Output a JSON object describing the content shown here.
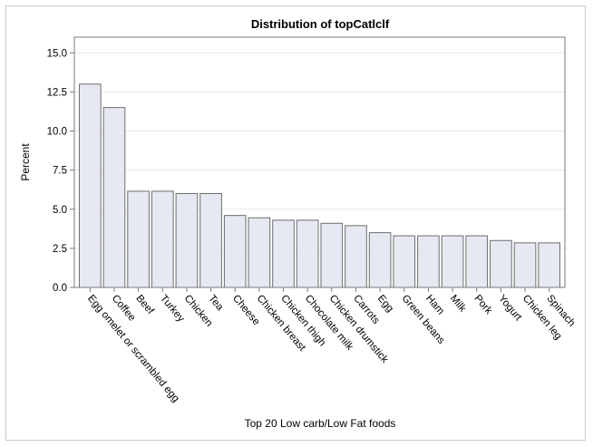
{
  "chart_data": {
    "type": "bar",
    "title": "Distribution of topCatlclf",
    "xlabel": "Top 20 Low carb/Low Fat foods",
    "ylabel": "Percent",
    "ylim": [
      0,
      16
    ],
    "yticks": [
      "0.0",
      "2.5",
      "5.0",
      "7.5",
      "10.0",
      "12.5",
      "15.0"
    ],
    "ytick_values": [
      0,
      2.5,
      5.0,
      7.5,
      10.0,
      12.5,
      15.0
    ],
    "grid": true,
    "categories": [
      "Egg omelet or scrambled egg",
      "Coffee",
      "Beef",
      "Turkey",
      "Chicken",
      "Tea",
      "Cheese",
      "Chicken breast",
      "Chicken thigh",
      "Chocolate milk",
      "Chicken drumstick",
      "Carrots",
      "Egg",
      "Green beans",
      "Ham",
      "Milk",
      "Pork",
      "Yogurt",
      "Chicken leg",
      "Spinach"
    ],
    "values": [
      13.0,
      11.5,
      6.15,
      6.15,
      6.0,
      6.0,
      4.6,
      4.45,
      4.3,
      4.3,
      4.1,
      3.95,
      3.5,
      3.3,
      3.3,
      3.3,
      3.3,
      3.0,
      2.85,
      2.85
    ],
    "colors": {
      "bar_fill": "#e6e9f2",
      "bar_stroke": "#6e6e6e",
      "grid": "#e8e8e8",
      "axis": "#7a7a7a"
    }
  }
}
